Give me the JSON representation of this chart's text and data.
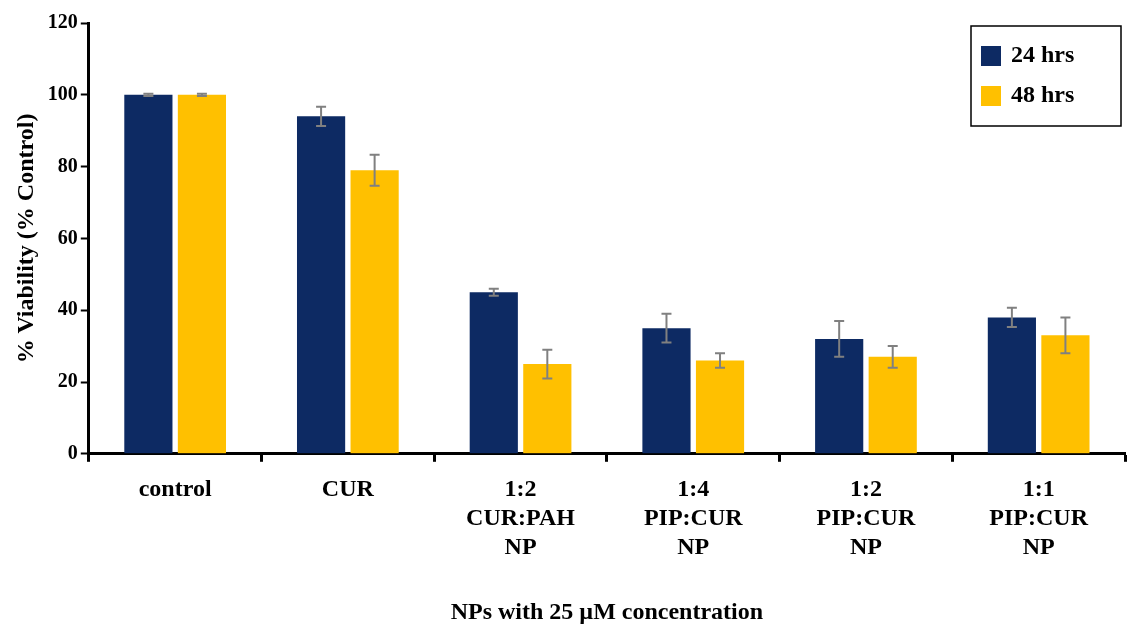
{
  "chart_data": {
    "type": "bar",
    "xlabel": "NPs with 25 µM concentration",
    "ylabel": "% Viability (% Control)",
    "categories": [
      "control",
      "CUR",
      "1:2 CUR:PAH NP",
      "1:4 PIP:CUR NP",
      "1:2 PIP:CUR NP",
      "1:1 PIP:CUR NP"
    ],
    "series": [
      {
        "name": "24 hrs",
        "color": "#0d2a63",
        "values": [
          100,
          94,
          45,
          35,
          32,
          38
        ],
        "errors": [
          0.3,
          2.7,
          1,
          4,
          5,
          2.7
        ]
      },
      {
        "name": "48 hrs",
        "color": "#ffc000",
        "values": [
          100,
          79,
          25,
          26,
          27,
          33
        ],
        "errors": [
          0.3,
          4.3,
          4,
          2,
          3,
          5
        ]
      }
    ],
    "ylim": [
      0,
      120
    ],
    "yticks": [
      0,
      20,
      40,
      60,
      80,
      100,
      120
    ],
    "grid": false,
    "legend": "top right"
  }
}
